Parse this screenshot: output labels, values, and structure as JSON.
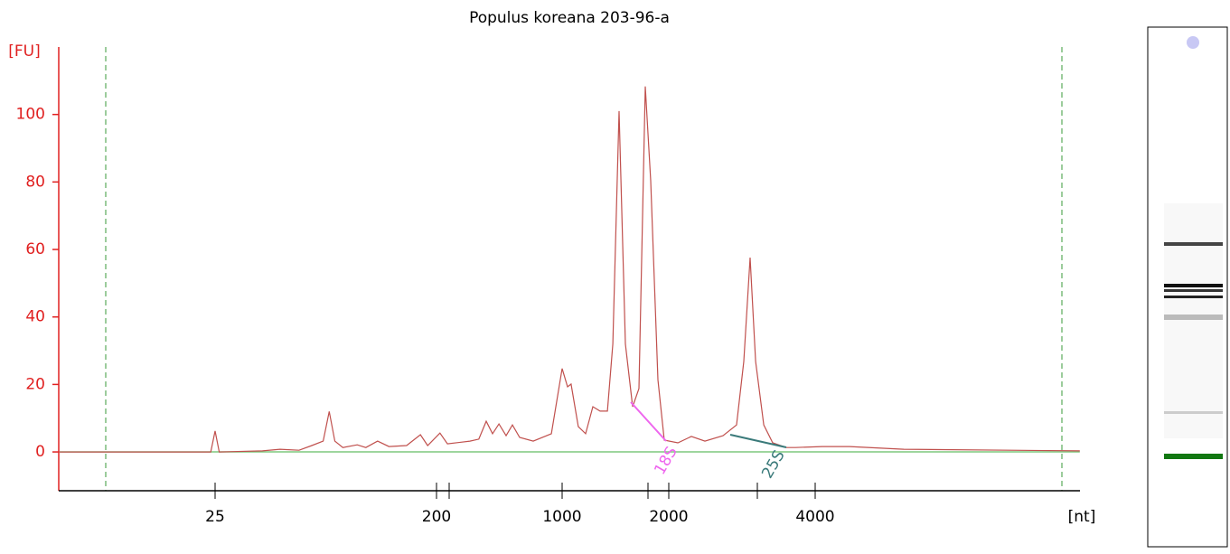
{
  "chart_data": {
    "type": "line",
    "title": "Populus koreana 203-96-a",
    "y_label": "[FU]",
    "x_label": "[nt]",
    "x": [
      5.8,
      24,
      25,
      26,
      39,
      46,
      55,
      62,
      69,
      73,
      77,
      83,
      95,
      103,
      115,
      128,
      151,
      172,
      184,
      209,
      230,
      307,
      344,
      378,
      410,
      445,
      488,
      529,
      580,
      690,
      871,
      1000,
      1036,
      1060,
      1111,
      1165,
      1221,
      1280,
      1342,
      1390,
      1448,
      1509,
      1581,
      1648,
      1717,
      1778,
      1864,
      1942,
      2088,
      2226,
      2373,
      2585,
      2757,
      2853,
      2940,
      3017,
      3135,
      3272,
      3490,
      3642,
      4139,
      4707,
      6085,
      14000
    ],
    "series": [
      {
        "color": "#c0504d",
        "values": [
          0,
          0,
          6.2,
          0,
          0.3,
          0.8,
          0.5,
          1.9,
          3.2,
          12,
          3.2,
          1.3,
          2.1,
          1.3,
          3.2,
          1.6,
          1.9,
          5.1,
          1.9,
          5.6,
          2.4,
          3.2,
          3.8,
          9.1,
          5.4,
          8.3,
          4.8,
          8,
          4.3,
          3.2,
          5.4,
          24.7,
          19.3,
          20.1,
          7.5,
          5.4,
          13.4,
          12.1,
          12.1,
          32,
          101,
          32,
          13.4,
          18.8,
          108.3,
          80.4,
          21.4,
          3.5,
          2.7,
          4.6,
          3.2,
          4.8,
          8,
          26.8,
          57.6,
          26.8,
          8,
          2.7,
          1.3,
          1.3,
          1.6,
          1.6,
          0.8,
          0.3
        ]
      }
    ],
    "annotations": [
      "18S",
      "25S"
    ],
    "xlim": [
      5.8,
      14000
    ],
    "xticks": [
      25,
      200,
      1000,
      2000,
      4000
    ],
    "ylim": [
      -11.5,
      120
    ],
    "yticks": [
      0,
      20,
      40,
      60,
      80,
      100
    ]
  }
}
